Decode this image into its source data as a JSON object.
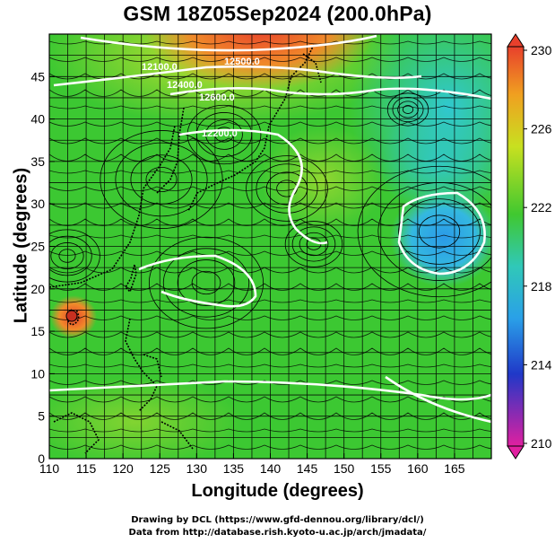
{
  "title": "GSM 18Z05Sep2024 (200.0hPa)",
  "x_axis_label": "Longitude (degrees)",
  "y_axis_label": "Latitude  (degrees)",
  "x_ticks": [
    "110",
    "115",
    "120",
    "125",
    "130",
    "135",
    "140",
    "145",
    "150",
    "155",
    "160",
    "165"
  ],
  "y_ticks": [
    "0",
    "5",
    "10",
    "15",
    "20",
    "25",
    "30",
    "35",
    "40",
    "45"
  ],
  "colorbar_ticks": [
    "230",
    "226",
    "222",
    "218",
    "214",
    "210"
  ],
  "contour_labels": [
    "12100.0",
    "12400.0",
    "12500.0",
    "12600.0",
    "12200.0"
  ],
  "credit_line1": "Drawing by DCL (https://www.gfd-dennou.org/library/dcl/)",
  "credit_line2": "Data from http://database.rish.kyoto-u.ac.jp/arch/jmadata/",
  "colors": {
    "warm": "#e8402c",
    "orange": "#f5a623",
    "yellow_green": "#b8e02a",
    "green": "#3cc832",
    "cyan": "#30c8c8",
    "blue": "#2aa0e8",
    "magenta": "#e020a0"
  },
  "map_extent": {
    "lon": [
      110,
      170
    ],
    "lat": [
      0,
      50
    ]
  }
}
